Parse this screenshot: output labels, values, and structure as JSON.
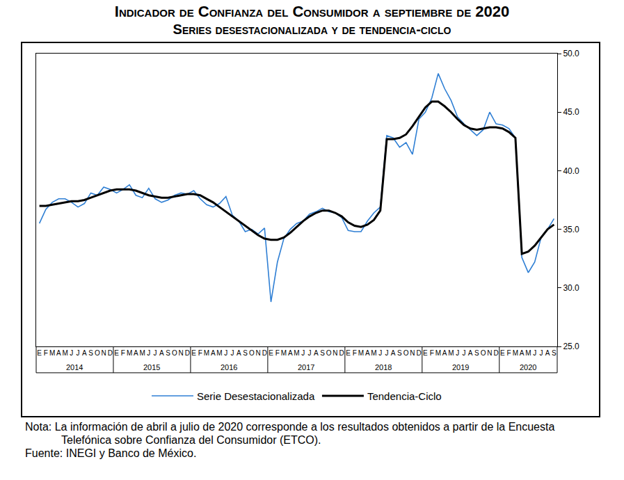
{
  "chart_data": {
    "type": "line",
    "title": "Indicador de Confianza del Consumidor a septiembre de 2020",
    "subtitle": "Series desestacionalizada y de tendencia-ciclo",
    "categories": [
      "E",
      "F",
      "M",
      "A",
      "M",
      "J",
      "J",
      "A",
      "S",
      "O",
      "N",
      "D",
      "E",
      "F",
      "M",
      "A",
      "M",
      "J",
      "J",
      "A",
      "S",
      "O",
      "N",
      "D",
      "E",
      "F",
      "M",
      "A",
      "M",
      "J",
      "J",
      "A",
      "S",
      "O",
      "N",
      "D",
      "E",
      "F",
      "M",
      "A",
      "M",
      "J",
      "J",
      "A",
      "S",
      "O",
      "N",
      "D",
      "E",
      "F",
      "M",
      "A",
      "M",
      "J",
      "J",
      "A",
      "S",
      "O",
      "N",
      "D",
      "E",
      "F",
      "M",
      "A",
      "M",
      "J",
      "J",
      "A",
      "S",
      "O",
      "N",
      "D",
      "E",
      "F",
      "M",
      "A",
      "M",
      "J",
      "J",
      "A",
      "S"
    ],
    "year_groups": [
      {
        "label": "2014",
        "months": 12
      },
      {
        "label": "2015",
        "months": 12
      },
      {
        "label": "2016",
        "months": 12
      },
      {
        "label": "2017",
        "months": 12
      },
      {
        "label": "2018",
        "months": 12
      },
      {
        "label": "2019",
        "months": 12
      },
      {
        "label": "2020",
        "months": 9
      }
    ],
    "series": [
      {
        "name": "Serie Desestacionalizada",
        "color": "#2f7fd4",
        "line_style": "solid",
        "values": [
          35.5,
          36.7,
          37.3,
          37.6,
          37.6,
          37.3,
          36.9,
          37.2,
          38.1,
          37.9,
          38.6,
          38.4,
          38.1,
          38.4,
          38.8,
          37.9,
          37.7,
          38.5,
          37.6,
          37.3,
          37.5,
          37.9,
          38.1,
          38.0,
          38.3,
          37.6,
          37.1,
          36.9,
          37.2,
          37.8,
          36.2,
          35.7,
          34.8,
          35.0,
          34.6,
          35.1,
          28.8,
          32.2,
          34.2,
          35.0,
          35.5,
          35.7,
          36.3,
          36.5,
          36.8,
          36.5,
          36.4,
          36.0,
          34.9,
          34.8,
          34.8,
          35.7,
          36.4,
          36.9,
          43.0,
          42.8,
          42.0,
          42.4,
          41.4,
          44.4,
          45.0,
          46.2,
          48.3,
          47.0,
          46.0,
          44.6,
          44.0,
          43.5,
          43.0,
          43.5,
          45.0,
          44.0,
          43.9,
          43.6,
          42.8,
          32.6,
          31.3,
          32.2,
          34.3,
          35.0,
          35.9
        ]
      },
      {
        "name": "Tendencia-Ciclo",
        "color": "#000000",
        "line_style": "solid",
        "values": [
          37.0,
          37.0,
          37.1,
          37.2,
          37.3,
          37.4,
          37.4,
          37.5,
          37.7,
          37.9,
          38.1,
          38.3,
          38.4,
          38.4,
          38.4,
          38.3,
          38.1,
          37.9,
          37.8,
          37.7,
          37.7,
          37.8,
          37.9,
          38.0,
          38.0,
          37.9,
          37.6,
          37.3,
          36.9,
          36.5,
          36.1,
          35.7,
          35.3,
          34.9,
          34.5,
          34.2,
          34.1,
          34.1,
          34.3,
          34.7,
          35.2,
          35.7,
          36.1,
          36.4,
          36.6,
          36.6,
          36.4,
          36.1,
          35.6,
          35.3,
          35.2,
          35.4,
          35.8,
          36.6,
          42.7,
          42.7,
          42.8,
          43.1,
          43.8,
          44.6,
          45.4,
          45.9,
          45.9,
          45.5,
          45.0,
          44.4,
          43.9,
          43.6,
          43.5,
          43.6,
          43.7,
          43.7,
          43.6,
          43.3,
          42.8,
          32.9,
          33.1,
          33.6,
          34.3,
          35.0,
          35.4
        ]
      }
    ],
    "ylim": [
      25,
      50
    ],
    "yticks": [
      {
        "value": 25,
        "label": "25.0"
      },
      {
        "value": 30,
        "label": "30.0"
      },
      {
        "value": 35,
        "label": "35.0"
      },
      {
        "value": 40,
        "label": "40.0"
      },
      {
        "value": 45,
        "label": "45.0"
      },
      {
        "value": 50,
        "label": "50.0"
      }
    ],
    "grid": false,
    "legend": "bottom",
    "note": "Nota: La información de abril a julio de 2020 corresponde a los resultados obtenidos a partir de la Encuesta Telefónica sobre Confianza del Consumidor (ETCO).",
    "source": "Fuente: INEGI y Banco de México."
  }
}
